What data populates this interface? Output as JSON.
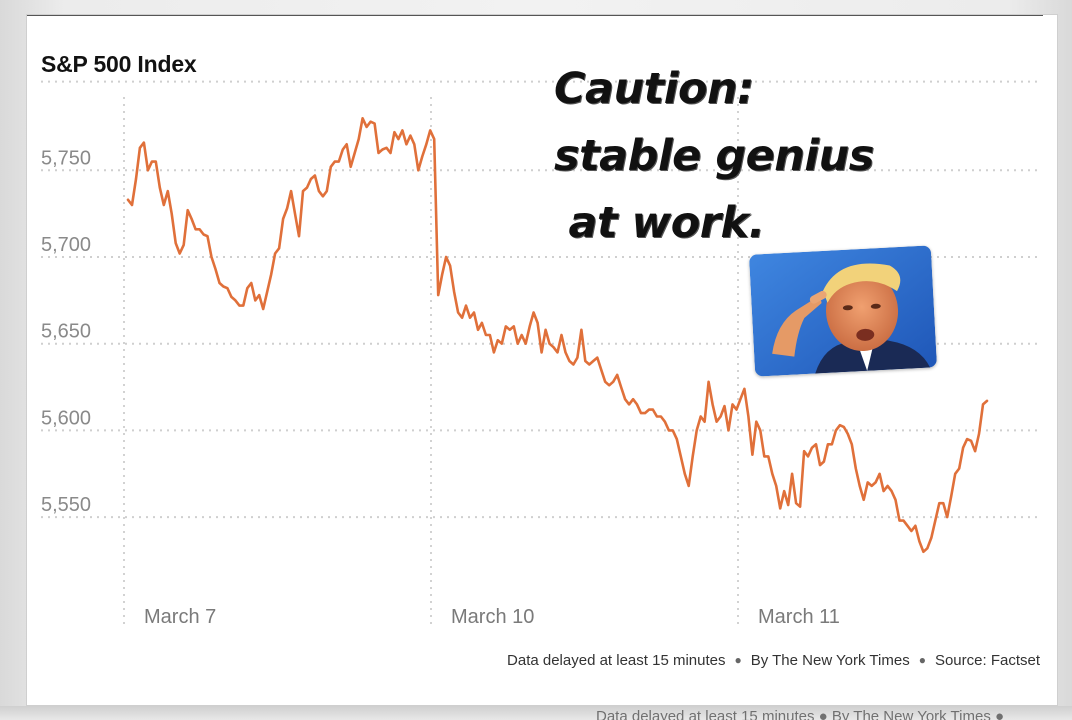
{
  "chart_data": {
    "type": "line",
    "title": "S&P 500 Index",
    "xlabel": "",
    "ylabel": "",
    "x_ticks": [
      "March 7",
      "March 10",
      "March 11"
    ],
    "y_ticks": [
      "5,550",
      "5,600",
      "5,650",
      "5,700",
      "5,750"
    ],
    "y_tick_values": [
      5550,
      5600,
      5650,
      5700,
      5750
    ],
    "ylim": [
      5500,
      5800
    ],
    "grid": true,
    "line_color": "#e0703a",
    "series": [
      {
        "values": [
          5733,
          5730,
          5745,
          5763,
          5766,
          5750,
          5755,
          5755,
          5740,
          5730,
          5738,
          5725,
          5708,
          5702,
          5707,
          5727,
          5722,
          5716,
          5716,
          5713,
          5712,
          5700,
          5693,
          5685,
          5683,
          5682,
          5677,
          5675,
          5672,
          5672,
          5682,
          5685,
          5675,
          5678,
          5670,
          5680,
          5690,
          5702,
          5705,
          5722,
          5728,
          5738,
          5725,
          5712,
          5738,
          5740,
          5745,
          5747,
          5738,
          5735,
          5738,
          5752,
          5755,
          5755,
          5762,
          5765,
          5752,
          5760,
          5768,
          5780,
          5775,
          5778,
          5777,
          5760,
          5762,
          5763,
          5760,
          5772,
          5768,
          5773,
          5765,
          5770,
          5765,
          5750,
          5758,
          5765,
          5773,
          5768,
          5678,
          5690,
          5700,
          5695,
          5680,
          5668,
          5665,
          5672,
          5665,
          5668,
          5658,
          5662,
          5655,
          5655,
          5645,
          5652,
          5650,
          5660,
          5658,
          5660,
          5650,
          5655,
          5650,
          5660,
          5668,
          5662,
          5645,
          5658,
          5650,
          5648,
          5645,
          5655,
          5645,
          5640,
          5638,
          5642,
          5658,
          5640,
          5638,
          5640,
          5642,
          5635,
          5628,
          5626,
          5628,
          5632,
          5625,
          5618,
          5615,
          5618,
          5615,
          5610,
          5610,
          5612,
          5612,
          5608,
          5608,
          5605,
          5600,
          5600,
          5595,
          5585,
          5575,
          5568,
          5585,
          5600,
          5608,
          5605,
          5628,
          5615,
          5605,
          5608,
          5614,
          5600,
          5615,
          5612,
          5618,
          5624,
          5608,
          5586,
          5605,
          5600,
          5585,
          5585,
          5575,
          5568,
          5555,
          5565,
          5557,
          5575,
          5558,
          5556,
          5588,
          5585,
          5590,
          5592,
          5580,
          5582,
          5592,
          5592,
          5600,
          5603,
          5602,
          5598,
          5592,
          5578,
          5568,
          5560,
          5570,
          5568,
          5570,
          5575,
          5565,
          5568,
          5565,
          5560,
          5548,
          5548,
          5545,
          5542,
          5545,
          5536,
          5530,
          5532,
          5538,
          5548,
          5558,
          5558,
          5550,
          5562,
          5575,
          5578,
          5590,
          5595,
          5594,
          5588,
          5598,
          5615,
          5617
        ]
      }
    ]
  },
  "footer": {
    "delay": "Data delayed at least 15 minutes",
    "byline": "By The New York Times",
    "source": "Source: Factset"
  },
  "caption": {
    "line1": "Caution:",
    "line2": "stable genius",
    "line3": " at work."
  },
  "photo": {
    "icon": "man-pointing-at-head-photo"
  }
}
